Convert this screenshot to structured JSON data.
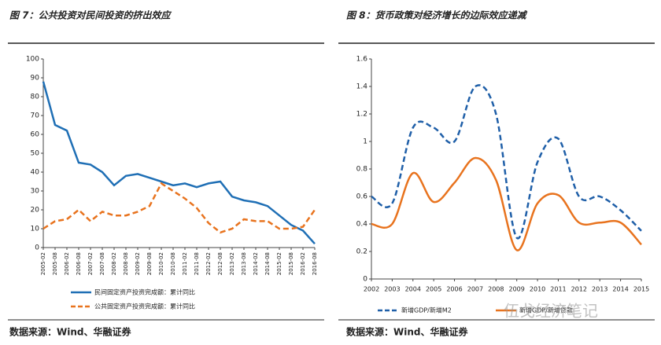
{
  "chart_data": [
    {
      "type": "line",
      "title": "图 7：公共投资对民间投资的挤出效应",
      "categories": [
        "2005-02",
        "2005-08",
        "2006-02",
        "2006-08",
        "2007-02",
        "2007-08",
        "2008-02",
        "2008-08",
        "2009-02",
        "2009-08",
        "2010-02",
        "2010-08",
        "2011-02",
        "2011-08",
        "2012-02",
        "2012-08",
        "2013-02",
        "2013-08",
        "2014-02",
        "2014-08",
        "2015-02",
        "2015-08",
        "2016-02",
        "2016-08"
      ],
      "series": [
        {
          "name": "民间固定资产投资完成额：累计同比",
          "color": "#1f6fb5",
          "dash": false,
          "values": [
            88,
            65,
            62,
            45,
            44,
            40,
            33,
            38,
            39,
            37,
            35,
            33,
            34,
            32,
            34,
            35,
            27,
            25,
            24,
            22,
            17,
            12,
            9,
            2
          ]
        },
        {
          "name": "公共固定资产投资完成额：累计同比",
          "color": "#e8731e",
          "dash": true,
          "values": [
            10,
            14,
            15,
            20,
            14,
            19,
            17,
            17,
            19,
            22,
            34,
            30,
            26,
            21,
            13,
            8,
            10,
            15,
            14,
            14,
            10,
            10,
            11,
            20
          ]
        }
      ],
      "ylim": [
        0,
        100
      ],
      "yticks": [
        0,
        10,
        20,
        30,
        40,
        50,
        60,
        70,
        80,
        90,
        100
      ],
      "grid": false,
      "smooth": false,
      "source": "数据来源：Wind、华融证券"
    },
    {
      "type": "line",
      "title": "图 8：货币政策对经济增长的边际效应递减",
      "categories": [
        "2002",
        "2003",
        "2004",
        "2005",
        "2006",
        "2007",
        "2008",
        "2009",
        "2010",
        "2011",
        "2012",
        "2013",
        "2014",
        "2015"
      ],
      "series": [
        {
          "name": "新增GDP/新增M2",
          "color": "#1f5fa8",
          "dash": true,
          "values": [
            0.6,
            0.55,
            1.1,
            1.1,
            1.0,
            1.4,
            1.2,
            0.3,
            0.85,
            1.02,
            0.6,
            0.6,
            0.5,
            0.35
          ]
        },
        {
          "name": "新增GDP/新增贷款",
          "color": "#e8731e",
          "dash": false,
          "values": [
            0.4,
            0.4,
            0.77,
            0.56,
            0.7,
            0.88,
            0.72,
            0.21,
            0.55,
            0.61,
            0.41,
            0.41,
            0.41,
            0.25
          ]
        }
      ],
      "ylim": [
        0,
        1.6
      ],
      "yticks": [
        0,
        0.2,
        0.4,
        0.6,
        0.8,
        1,
        1.2,
        1.4,
        1.6
      ],
      "grid": false,
      "smooth": true,
      "source": "数据来源：Wind、华融证券",
      "watermark": "伍戈经济笔记"
    }
  ]
}
